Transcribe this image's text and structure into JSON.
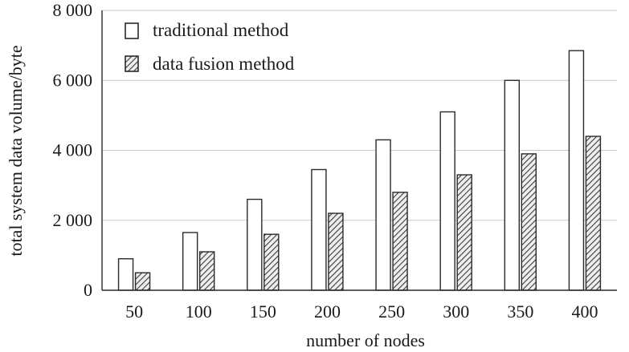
{
  "chart_data": {
    "type": "bar",
    "title": "",
    "xlabel": "number of nodes",
    "ylabel": "total system data volume/byte",
    "categories": [
      "50",
      "100",
      "150",
      "200",
      "250",
      "300",
      "350",
      "400"
    ],
    "series": [
      {
        "name": "traditional method",
        "values": [
          900,
          1650,
          2600,
          3450,
          4300,
          5100,
          6000,
          6850
        ],
        "fill": "#ffffff",
        "pattern": "none"
      },
      {
        "name": "data fusion method",
        "values": [
          500,
          1100,
          1600,
          2200,
          2800,
          3300,
          3900,
          4400
        ],
        "fill": "#d8d8d8",
        "pattern": "diagonal-hatch"
      }
    ],
    "ylim": [
      0,
      8000
    ],
    "yticks": [
      0,
      2000,
      4000,
      6000,
      8000
    ],
    "ytick_labels": [
      "0",
      "2 000",
      "4 000",
      "6 000",
      "8 000"
    ],
    "grid": "horizontal",
    "legend_position": "top-left",
    "colors": {
      "grid": "#c8c8c8",
      "axis": "#2a2a2a",
      "bar_edge": "#2a2a2a"
    }
  }
}
